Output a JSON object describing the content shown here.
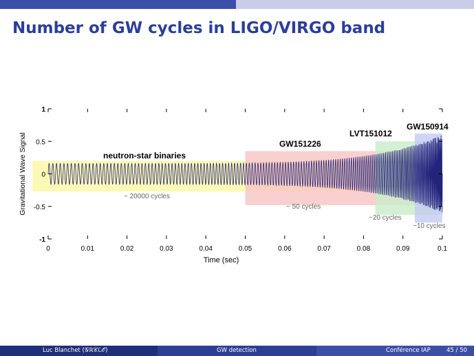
{
  "slide": {
    "title": "Number of GW cycles in LIGO/VIRGO band"
  },
  "footer": {
    "author": "Luc Blanchet  (𝒢ℝ𝒞ℒ𝒪)",
    "talk": "GW detection",
    "venue": "Conférence IAP",
    "page": "45 / 50"
  },
  "chart_data": {
    "type": "line",
    "title": "",
    "xlabel": "Time (sec)",
    "ylabel": "Gravitational Wave Signal",
    "xlim": [
      0,
      0.1
    ],
    "ylim": [
      -1,
      1
    ],
    "x_ticks": [
      "0",
      "0.01",
      "0.02",
      "0.03",
      "0.04",
      "0.05",
      "0.06",
      "0.07",
      "0.08",
      "0.09",
      "0.1"
    ],
    "y_ticks": [
      "1",
      "0.5",
      "0",
      "-0.5",
      "-1"
    ],
    "grid": false,
    "bands": [
      {
        "label": "neutron-star binaries",
        "cycles": "~ 20000  cycles",
        "x_start": -0.004,
        "x_end": 0.1,
        "y_range": [
          -0.27,
          0.2
        ],
        "color": "#fbf8a4"
      },
      {
        "label": "GW151226",
        "cycles": "~ 50 cycles",
        "x_start": 0.05,
        "x_end": 0.1,
        "y_range": [
          -0.48,
          0.35
        ],
        "color": "#f8c4c4"
      },
      {
        "label": "LVT151012",
        "cycles": "~20  cycles",
        "x_start": 0.083,
        "x_end": 0.1,
        "y_range": [
          -0.63,
          0.5
        ],
        "color": "#c9ecc9"
      },
      {
        "label": "GW150914",
        "cycles": "~10 cycles",
        "x_start": 0.093,
        "x_end": 0.1,
        "y_range": [
          -0.75,
          0.62
        ],
        "color": "#c6caf2"
      }
    ],
    "waveform": {
      "x_start": 0,
      "x_end": 0.1,
      "amplitude_start": 0.16,
      "amplitude_end": 0.6,
      "color": "#23237a"
    }
  }
}
